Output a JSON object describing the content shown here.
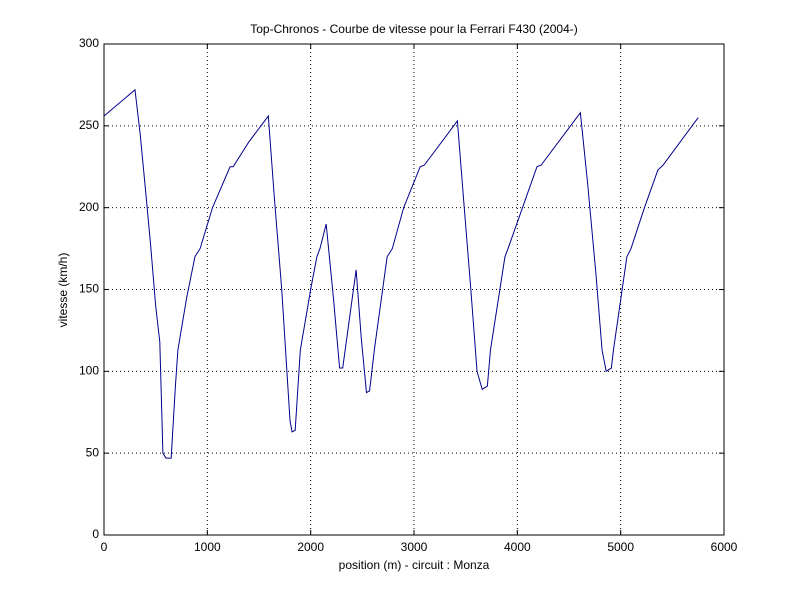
{
  "chart_data": {
    "type": "line",
    "title": "Top-Chronos - Courbe de vitesse pour la Ferrari F430 (2004-)",
    "xlabel": "position (m) - circuit : Monza",
    "ylabel": "vitesse (km/h)",
    "x": [
      0,
      300,
      350,
      400,
      450,
      500,
      540,
      570,
      600,
      650,
      690,
      715,
      800,
      880,
      930,
      1050,
      1220,
      1250,
      1400,
      1590,
      1650,
      1720,
      1800,
      1820,
      1850,
      1900,
      2000,
      2060,
      2090,
      2150,
      2220,
      2280,
      2310,
      2440,
      2490,
      2540,
      2570,
      2620,
      2740,
      2790,
      2900,
      3060,
      3100,
      3420,
      3480,
      3550,
      3610,
      3660,
      3710,
      3740,
      3880,
      3910,
      4050,
      4190,
      4230,
      4610,
      4680,
      4760,
      4820,
      4860,
      4910,
      4930,
      5060,
      5100,
      5230,
      5360,
      5410,
      5750
    ],
    "series": [
      {
        "name": "vitesse",
        "color": "#00008b",
        "values": [
          256,
          272,
          245,
          212,
          178,
          140,
          118,
          50,
          47,
          47,
          90,
          113,
          145,
          170,
          175,
          200,
          225,
          225,
          240,
          256,
          205,
          150,
          70,
          63,
          64,
          113,
          150,
          170,
          175,
          190,
          145,
          102,
          102,
          162,
          120,
          87,
          88,
          115,
          170,
          175,
          200,
          225,
          226,
          253,
          205,
          150,
          100,
          89,
          91,
          113,
          170,
          175,
          200,
          225,
          226,
          258,
          215,
          160,
          113,
          100,
          102,
          113,
          170,
          175,
          200,
          223,
          226,
          255
        ]
      }
    ],
    "xlim": [
      0,
      6000
    ],
    "xticks": [
      0,
      1000,
      2000,
      3000,
      4000,
      5000,
      6000
    ],
    "ylim": [
      0,
      300
    ],
    "yticks": [
      0,
      50,
      100,
      150,
      200,
      250,
      300
    ],
    "grid": true
  }
}
